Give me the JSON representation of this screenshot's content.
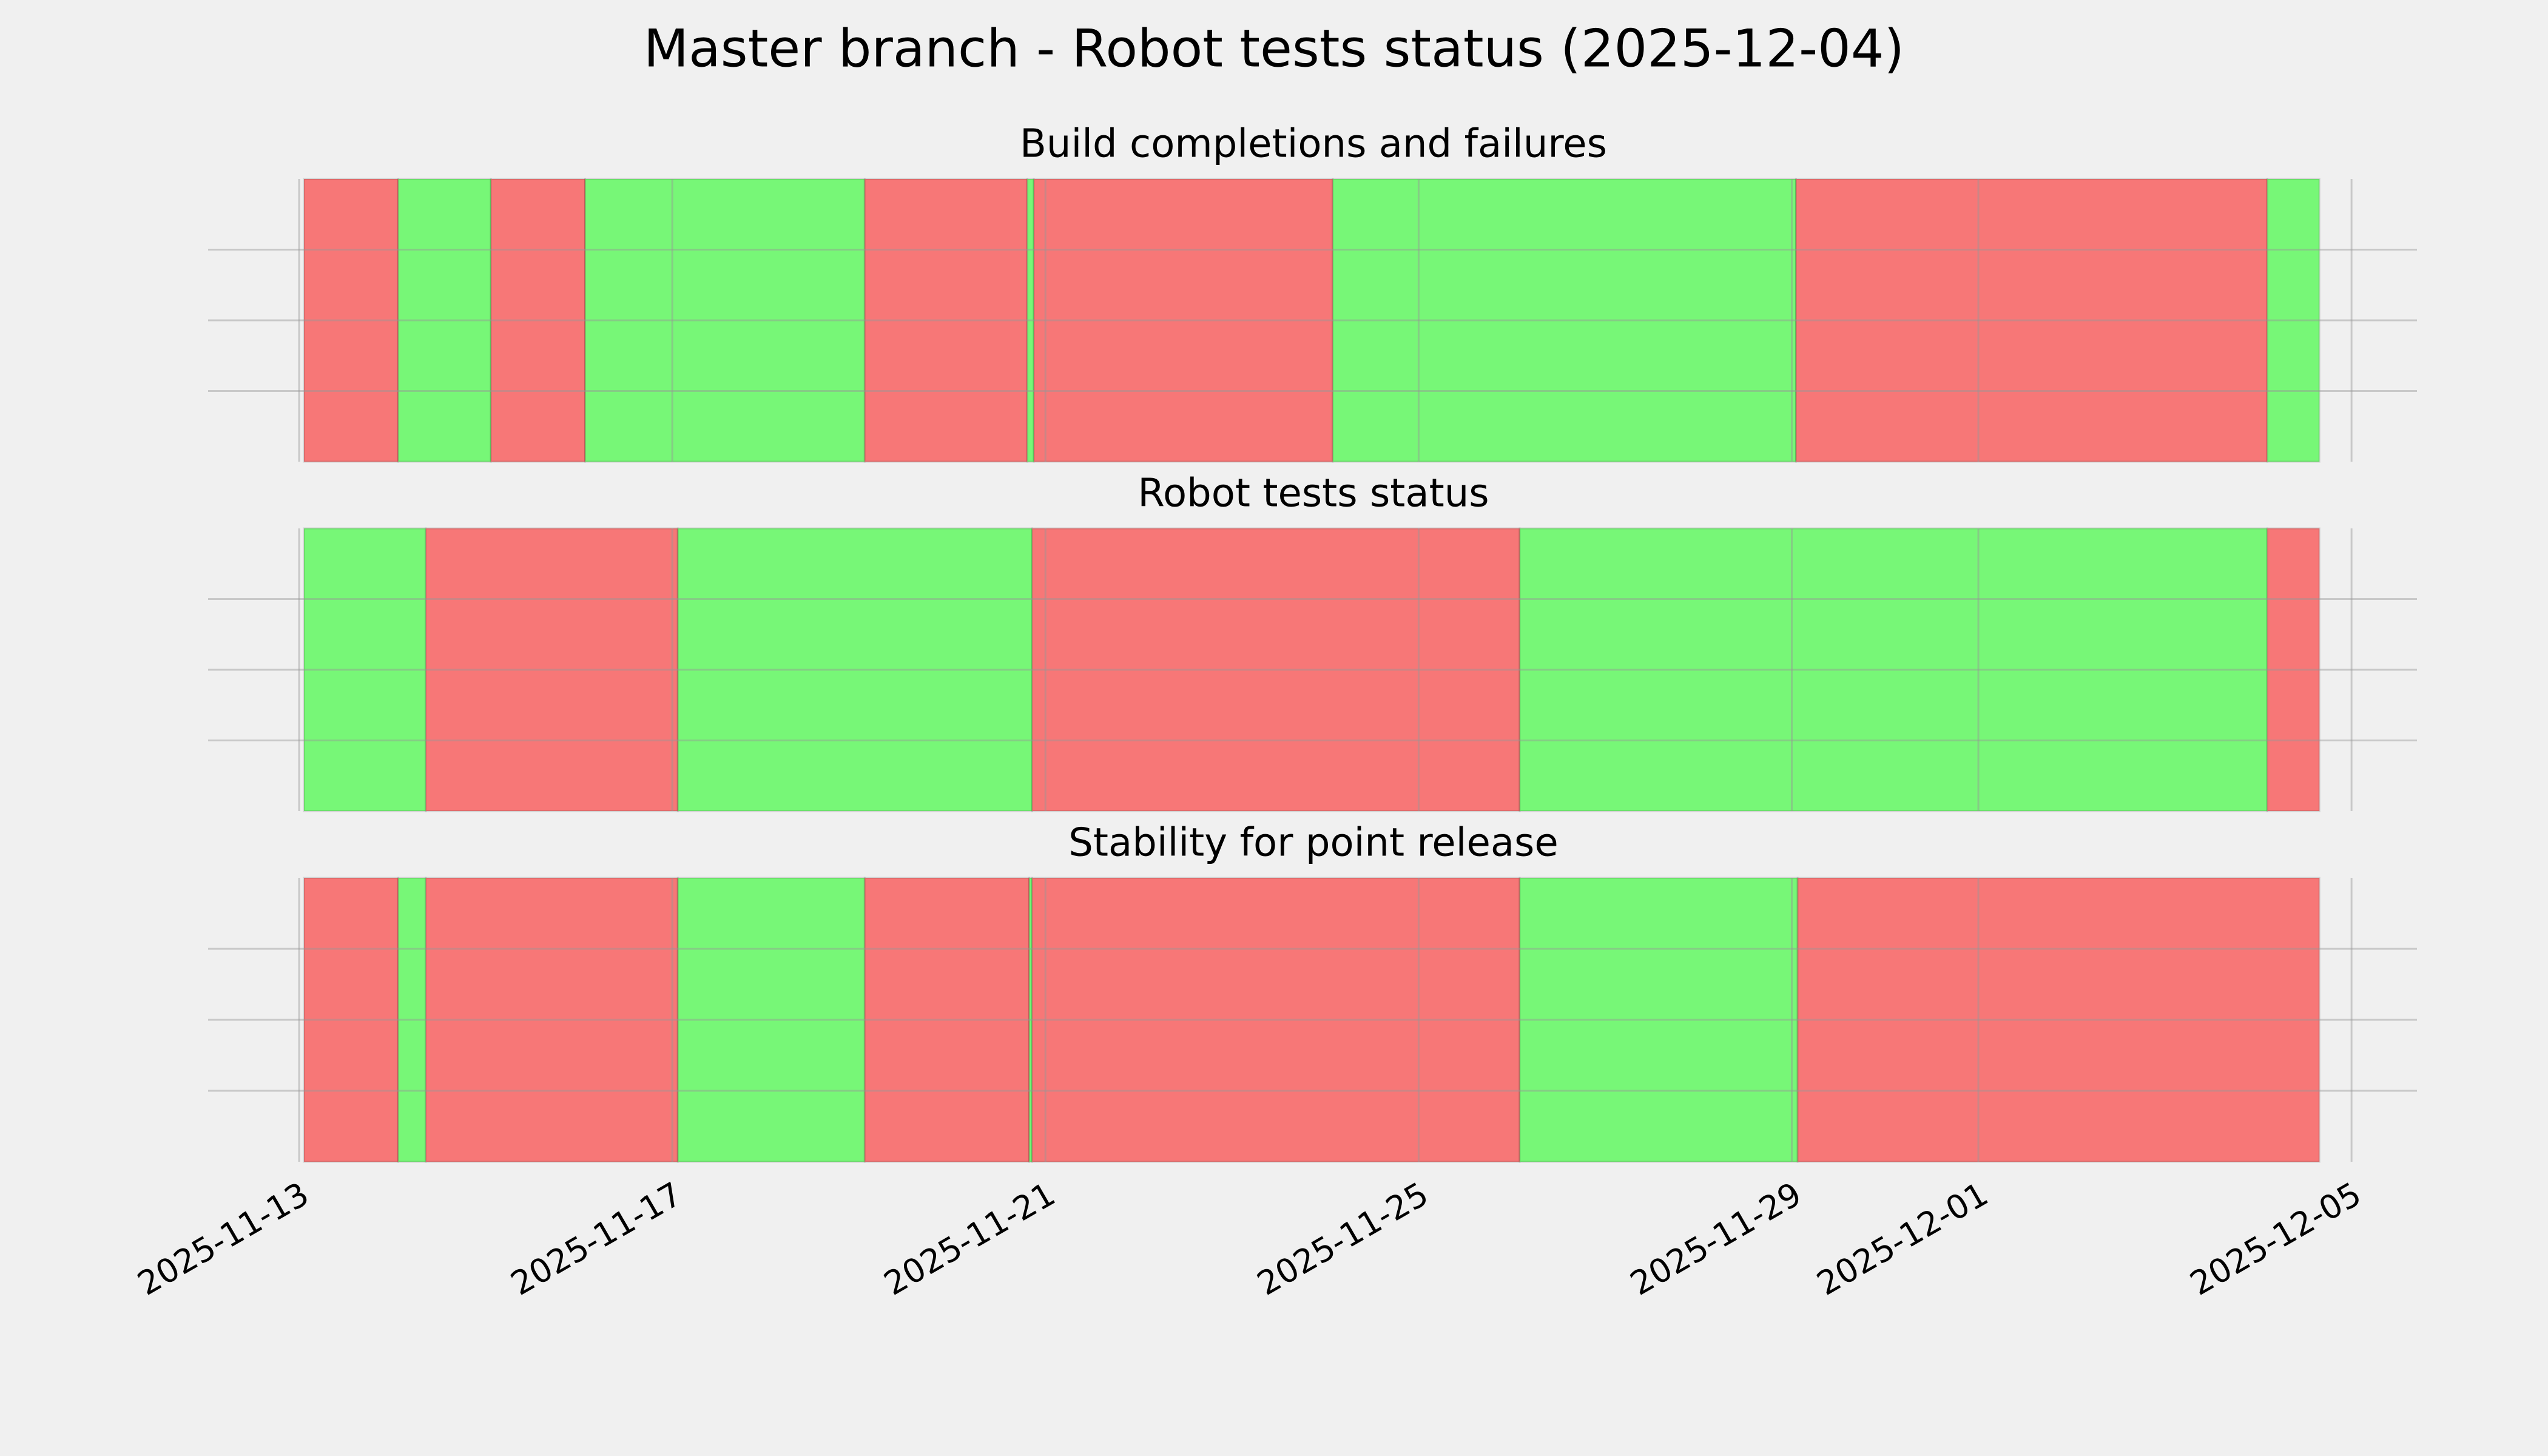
{
  "chart_data": {
    "type": "timeline",
    "title": "Master branch - Robot tests status (2025-12-04)",
    "xlim": [
      "2025-11-12T00:35",
      "2025-12-05T16:50"
    ],
    "xticks": [
      "2025-11-13",
      "2025-11-17",
      "2025-11-21",
      "2025-11-25",
      "2025-11-29",
      "2025-12-01",
      "2025-12-05"
    ],
    "grid": true,
    "panels": [
      {
        "title": "Build completions and failures",
        "segments": [
          {
            "start": "2025-11-13T01:15",
            "end": "2025-11-14T01:30",
            "color": "#f77777"
          },
          {
            "start": "2025-11-14T01:30",
            "end": "2025-11-15T01:20",
            "color": "#77f777"
          },
          {
            "start": "2025-11-15T01:20",
            "end": "2025-11-16T01:35",
            "color": "#f77777"
          },
          {
            "start": "2025-11-16T01:35",
            "end": "2025-11-19T01:30",
            "color": "#77f777"
          },
          {
            "start": "2025-11-19T01:30",
            "end": "2025-11-20T19:20",
            "color": "#f77777"
          },
          {
            "start": "2025-11-20T19:20",
            "end": "2025-11-20T21:00",
            "color": "#77f777"
          },
          {
            "start": "2025-11-20T21:00",
            "end": "2025-11-24T01:55",
            "color": "#f77777"
          },
          {
            "start": "2025-11-24T01:55",
            "end": "2025-11-29T01:05",
            "color": "#77f777"
          },
          {
            "start": "2025-11-29T01:05",
            "end": "2025-12-04T02:20",
            "color": "#f77777"
          },
          {
            "start": "2025-12-04T02:20",
            "end": "2025-12-04T15:45",
            "color": "#77f777"
          }
        ]
      },
      {
        "title": "Robot tests status",
        "segments": [
          {
            "start": "2025-11-13T01:15",
            "end": "2025-11-14T08:35",
            "color": "#77f777"
          },
          {
            "start": "2025-11-14T08:35",
            "end": "2025-11-17T01:25",
            "color": "#f77777"
          },
          {
            "start": "2025-11-17T01:25",
            "end": "2025-11-20T20:35",
            "color": "#77f777"
          },
          {
            "start": "2025-11-20T20:35",
            "end": "2025-11-26T02:00",
            "color": "#f77777"
          },
          {
            "start": "2025-11-26T02:00",
            "end": "2025-12-04T02:20",
            "color": "#77f777"
          },
          {
            "start": "2025-12-04T02:20",
            "end": "2025-12-04T15:45",
            "color": "#f77777"
          }
        ]
      },
      {
        "title": "Stability for point release",
        "segments": [
          {
            "start": "2025-11-13T01:15",
            "end": "2025-11-14T01:30",
            "color": "#f77777"
          },
          {
            "start": "2025-11-14T01:30",
            "end": "2025-11-14T08:35",
            "color": "#77f777"
          },
          {
            "start": "2025-11-14T08:35",
            "end": "2025-11-17T01:25",
            "color": "#f77777"
          },
          {
            "start": "2025-11-17T01:25",
            "end": "2025-11-19T01:30",
            "color": "#77f777"
          },
          {
            "start": "2025-11-19T01:30",
            "end": "2025-11-20T19:50",
            "color": "#f77777"
          },
          {
            "start": "2025-11-20T19:50",
            "end": "2025-11-20T20:35",
            "color": "#77f777"
          },
          {
            "start": "2025-11-20T20:35",
            "end": "2025-11-26T02:00",
            "color": "#f77777"
          },
          {
            "start": "2025-11-26T02:00",
            "end": "2025-11-29T01:30",
            "color": "#77f777"
          },
          {
            "start": "2025-11-29T01:30",
            "end": "2025-12-04T15:45",
            "color": "#f77777"
          }
        ]
      }
    ]
  }
}
